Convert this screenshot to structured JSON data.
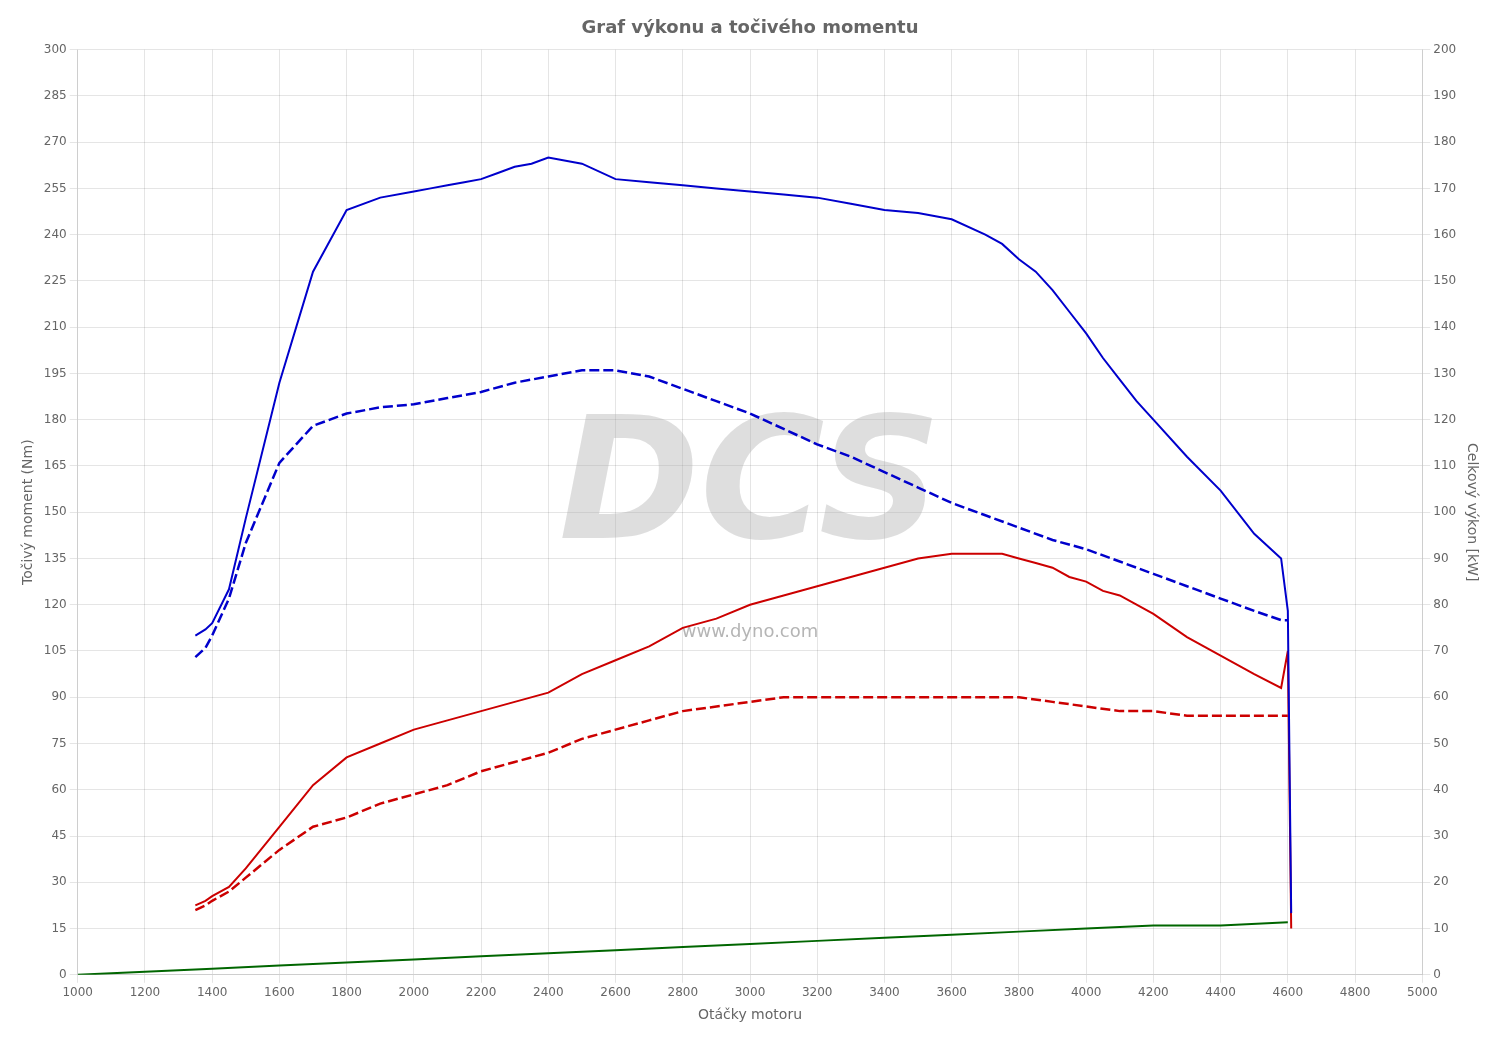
{
  "chart_data": {
    "type": "line",
    "title": "Graf výkonu a točivého momentu",
    "xlabel": "Otáčky motoru",
    "ylabel": "Točivý moment (Nm)",
    "y2label": "Celkový výkon [kW]",
    "xlim": [
      1000,
      5000
    ],
    "ylim": [
      0,
      300
    ],
    "y2lim": [
      0,
      200
    ],
    "xticks": [
      1000,
      1200,
      1400,
      1600,
      1800,
      2000,
      2200,
      2400,
      2600,
      2800,
      3000,
      3200,
      3400,
      3600,
      3800,
      4000,
      4200,
      4400,
      4600,
      4800,
      5000
    ],
    "yticks": [
      0,
      15,
      30,
      45,
      60,
      75,
      90,
      105,
      120,
      135,
      150,
      165,
      180,
      195,
      210,
      225,
      240,
      255,
      270,
      285,
      300
    ],
    "y2ticks": [
      0,
      10,
      20,
      30,
      40,
      50,
      60,
      70,
      80,
      90,
      100,
      110,
      120,
      130,
      140,
      150,
      160,
      170,
      180,
      190,
      200
    ],
    "grid": true,
    "annotations": [
      "DCS",
      "www.dyno.com"
    ],
    "series": [
      {
        "color": "#0000cc",
        "line_style": "solid",
        "x": [
          1350,
          1380,
          1400,
          1450,
          1500,
          1600,
          1700,
          1800,
          1900,
          2000,
          2050,
          2100,
          2150,
          2200,
          2250,
          2300,
          2350,
          2400,
          2500,
          2600,
          2700,
          2800,
          2900,
          3000,
          3100,
          3200,
          3300,
          3400,
          3500,
          3600,
          3700,
          3750,
          3800,
          3850,
          3900,
          3950,
          4000,
          4050,
          4100,
          4150,
          4200,
          4300,
          4400,
          4500,
          4580,
          4600,
          4610
        ],
        "values": [
          110,
          112,
          114,
          125,
          148,
          192,
          228,
          248,
          252,
          254,
          255,
          256,
          257,
          258,
          260,
          262,
          263,
          265,
          263,
          258,
          257,
          256,
          255,
          254,
          253,
          252,
          250,
          248,
          247,
          245,
          240,
          237,
          232,
          228,
          222,
          215,
          208,
          200,
          193,
          186,
          180,
          168,
          157,
          143,
          135,
          118,
          20
        ]
      },
      {
        "color": "#0000cc",
        "line_style": "dashed",
        "x": [
          1350,
          1380,
          1400,
          1450,
          1500,
          1600,
          1700,
          1800,
          1900,
          2000,
          2100,
          2200,
          2300,
          2400,
          2500,
          2600,
          2700,
          2800,
          2900,
          3000,
          3100,
          3200,
          3300,
          3400,
          3500,
          3600,
          3700,
          3800,
          3900,
          4000,
          4100,
          4200,
          4300,
          4400,
          4500,
          4580,
          4600
        ],
        "values": [
          103,
          106,
          110,
          122,
          140,
          166,
          178,
          182,
          184,
          185,
          187,
          189,
          192,
          194,
          196,
          196,
          194,
          190,
          186,
          182,
          177,
          172,
          168,
          163,
          158,
          153,
          149,
          145,
          141,
          138,
          134,
          130,
          126,
          122,
          118,
          115,
          115
        ]
      },
      {
        "color": "#006600",
        "line_style": "solid",
        "x": [
          1000,
          1200,
          1400,
          1600,
          1800,
          2000,
          2200,
          2400,
          2600,
          2800,
          3000,
          3200,
          3400,
          3600,
          3800,
          4000,
          4200,
          4400,
          4600
        ],
        "values": [
          0,
          1,
          2,
          3,
          4,
          5,
          6,
          7,
          8,
          9,
          10,
          11,
          12,
          13,
          14,
          15,
          16,
          16,
          17
        ]
      },
      {
        "color": "#cc0000",
        "line_style": "solid",
        "axis": "y2",
        "x": [
          1350,
          1380,
          1400,
          1450,
          1500,
          1600,
          1700,
          1800,
          1900,
          2000,
          2100,
          2200,
          2300,
          2400,
          2500,
          2600,
          2700,
          2800,
          2900,
          3000,
          3100,
          3200,
          3300,
          3400,
          3500,
          3600,
          3700,
          3750,
          3800,
          3850,
          3900,
          3950,
          4000,
          4050,
          4100,
          4200,
          4300,
          4400,
          4500,
          4580,
          4600,
          4610
        ],
        "values": [
          15,
          16,
          17,
          19,
          23,
          32,
          41,
          47,
          50,
          53,
          55,
          57,
          59,
          61,
          65,
          68,
          71,
          75,
          77,
          80,
          82,
          84,
          86,
          88,
          90,
          91,
          91,
          91,
          90,
          89,
          88,
          86,
          85,
          83,
          82,
          78,
          73,
          69,
          65,
          62,
          70,
          10
        ]
      },
      {
        "color": "#cc0000",
        "line_style": "dashed",
        "axis": "y2",
        "x": [
          1350,
          1380,
          1400,
          1450,
          1500,
          1600,
          1700,
          1800,
          1900,
          2000,
          2100,
          2200,
          2300,
          2400,
          2500,
          2600,
          2700,
          2800,
          2900,
          3000,
          3100,
          3200,
          3300,
          3400,
          3500,
          3600,
          3700,
          3800,
          3900,
          4000,
          4100,
          4200,
          4300,
          4400,
          4500,
          4580,
          4600
        ],
        "values": [
          14,
          15,
          16,
          18,
          21,
          27,
          32,
          34,
          37,
          39,
          41,
          44,
          46,
          48,
          51,
          53,
          55,
          57,
          58,
          59,
          60,
          60,
          60,
          60,
          60,
          60,
          60,
          60,
          59,
          58,
          57,
          57,
          56,
          56,
          56,
          56,
          56
        ]
      }
    ]
  }
}
